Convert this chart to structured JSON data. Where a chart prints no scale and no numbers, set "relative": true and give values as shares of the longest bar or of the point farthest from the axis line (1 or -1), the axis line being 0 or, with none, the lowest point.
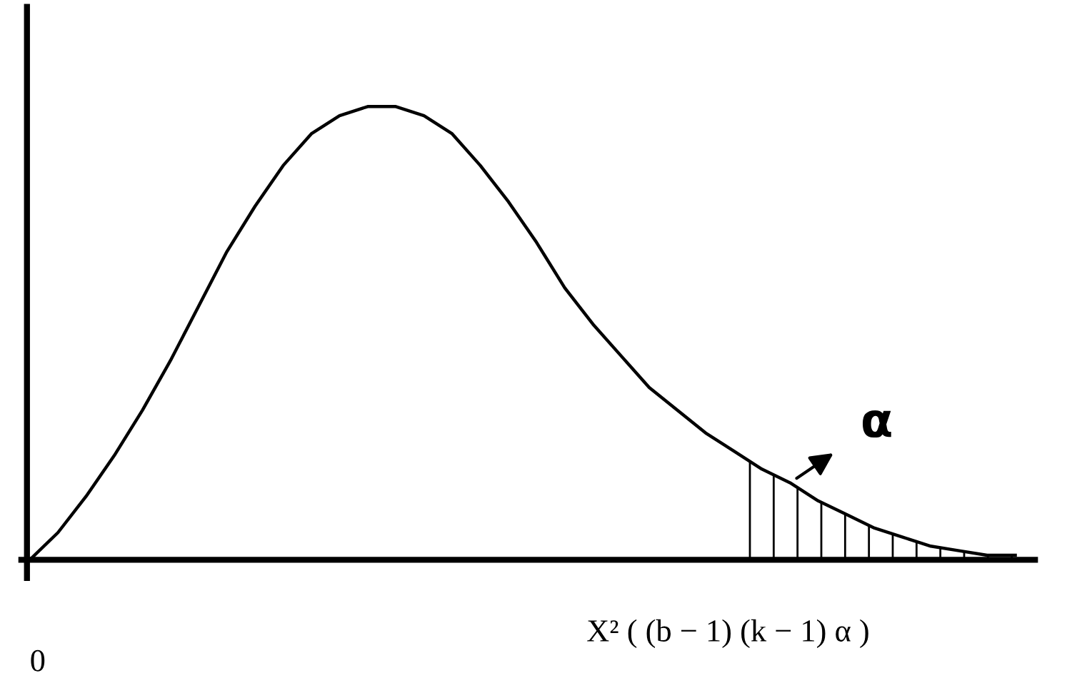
{
  "chart_data": {
    "type": "line",
    "relative": true,
    "categories": [
      null,
      null,
      null,
      null,
      null,
      null,
      null,
      null,
      null,
      null,
      null,
      null,
      null,
      null,
      null,
      null,
      null,
      null,
      null,
      null,
      null,
      null,
      null,
      null,
      null,
      null,
      null,
      null,
      null,
      null,
      null,
      null,
      null,
      null,
      null,
      null
    ],
    "series": [
      {
        "color": "#000000",
        "values": [
          0.0,
          0.06,
          0.14,
          0.23,
          0.33,
          0.44,
          0.56,
          0.68,
          0.78,
          0.87,
          0.94,
          0.98,
          1.0,
          1.0,
          0.98,
          0.94,
          0.87,
          0.79,
          0.7,
          0.6,
          0.52,
          0.45,
          0.38,
          0.33,
          0.28,
          0.24,
          0.2,
          0.17,
          0.13,
          0.1,
          0.07,
          0.05,
          0.03,
          0.02,
          0.01,
          0.01
        ]
      },
      {
        "type": "area",
        "color": "#000000",
        "values": [
          null,
          null,
          null,
          null,
          null,
          null,
          null,
          null,
          null,
          null,
          null,
          null,
          null,
          null,
          null,
          null,
          null,
          null,
          null,
          null,
          null,
          null,
          null,
          null,
          null,
          0.24,
          0.2,
          0.17,
          0.13,
          0.1,
          0.07,
          0.05,
          0.03,
          0.02,
          0.01,
          0.01
        ]
      }
    ],
    "annotations": [
      "0",
      "X² ( (b − 1) (k − 1) α )",
      "α"
    ],
    "grid": false,
    "legend": false,
    "marker": "none",
    "line_style": "solid"
  }
}
